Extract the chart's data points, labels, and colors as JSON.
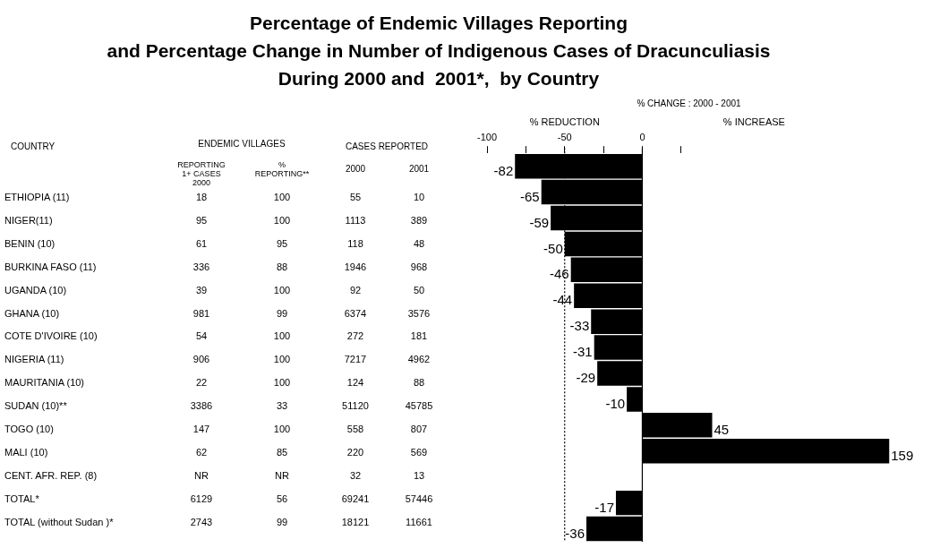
{
  "chart_data": [
    {
      "type": "other",
      "title": "Percentage of Endemic Villages Reporting\nand Percentage Change in Number of Indigenous Cases of Dracunculiasis\nDuring 2000 and  2001*,  by Country",
      "annotations": [
        "COUNTRY",
        "ENDEMIC VILLAGES",
        "CASES REPORTED"
      ],
      "categories": [
        "REPORTING\n1+ CASES\n2000",
        "%\nREPORTING**",
        "2000",
        "2001"
      ],
      "y_categories": [
        "ETHIOPIA (11)",
        "NIGER(11)",
        "BENIN (10)",
        "BURKINA FASO (11)",
        "UGANDA (10)",
        "GHANA (10)",
        "COTE D'IVOIRE (10)",
        "NIGERIA (11)",
        "MAURITANIA (10)",
        "SUDAN (10)**",
        "TOGO (10)",
        "MALI (10)",
        "CENT. AFR. REP. (8)",
        "TOTAL*",
        "TOTAL (without Sudan )*"
      ],
      "cell_labels": [
        [
          "18",
          "100",
          "55",
          "10"
        ],
        [
          "95",
          "100",
          "1113",
          "389"
        ],
        [
          "61",
          "95",
          "118",
          "48"
        ],
        [
          "336",
          "88",
          "1946",
          "968"
        ],
        [
          "39",
          "100",
          "92",
          "50"
        ],
        [
          "981",
          "99",
          "6374",
          "3576"
        ],
        [
          "54",
          "100",
          "272",
          "181"
        ],
        [
          "906",
          "100",
          "7217",
          "4962"
        ],
        [
          "22",
          "100",
          "124",
          "88"
        ],
        [
          "3386",
          "33",
          "51120",
          "45785"
        ],
        [
          "147",
          "100",
          "558",
          "807"
        ],
        [
          "62",
          "85",
          "220",
          "569"
        ],
        [
          "NR",
          "NR",
          "32",
          "13"
        ],
        [
          "6129",
          "56",
          "69241",
          "57446"
        ],
        [
          "2743",
          "99",
          "18121",
          "11661"
        ]
      ]
    },
    {
      "type": "bar",
      "orientation": "horizontal",
      "categories": [
        null,
        null,
        null,
        null,
        null,
        null,
        null,
        null,
        null,
        null,
        null,
        null,
        null,
        null,
        null
      ],
      "values": [
        -82,
        -65,
        -59,
        -50,
        -46,
        -44,
        -33,
        -31,
        -29,
        -10,
        45,
        159,
        null,
        -17,
        -36
      ],
      "color": "#000000",
      "xlim": [
        -100,
        160
      ],
      "xticks": [
        -100,
        {
          "value": -75,
          "label": null
        },
        -50,
        {
          "value": -25,
          "label": null
        },
        0,
        {
          "value": 25,
          "label": null
        }
      ],
      "xlabel": "% CHANGE : 2000 - 2001",
      "annotations": [
        "% REDUCTION",
        "% INCREASE"
      ],
      "data_labels": true,
      "ref_lines": [
        {
          "axis": "x",
          "value": -50,
          "line_style": "dotted",
          "color": "#000000"
        },
        {
          "axis": "x",
          "value": 0,
          "line_style": "solid",
          "color": "#000000"
        }
      ],
      "grid": false,
      "legend": false,
      "tick_labels": "x"
    }
  ]
}
